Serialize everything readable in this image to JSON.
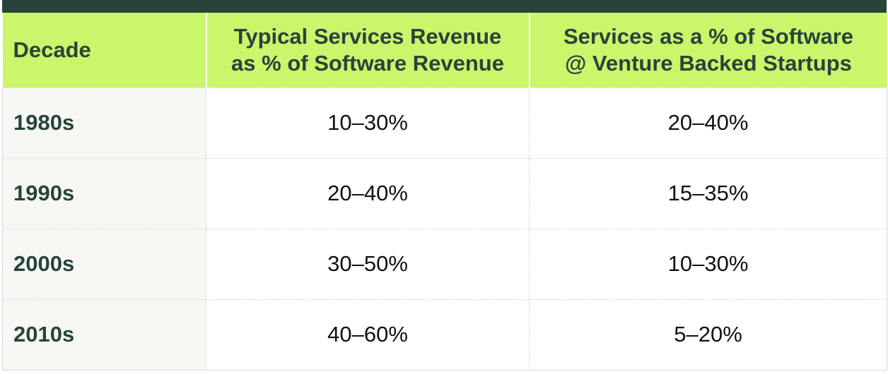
{
  "table": {
    "headers": {
      "decade": "Decade",
      "typical_line1": "Typical Services Revenue",
      "typical_line2": "as % of Software Revenue",
      "venture_line1": "Services as a % of Software",
      "venture_line2": "@ Venture Backed Startups"
    },
    "rows": [
      {
        "decade": "1980s",
        "typical": "10–30%",
        "venture": "20–40%"
      },
      {
        "decade": "1990s",
        "typical": "20–40%",
        "venture": "15–35%"
      },
      {
        "decade": "2000s",
        "typical": "30–50%",
        "venture": "10–30%"
      },
      {
        "decade": "2010s",
        "typical": "40–60%",
        "venture": "5–20%"
      }
    ]
  },
  "colors": {
    "header_bg": "#cbf56a",
    "header_text": "#27443a",
    "top_bar": "#27443a",
    "decade_col_bg": "#f7f7f4"
  }
}
